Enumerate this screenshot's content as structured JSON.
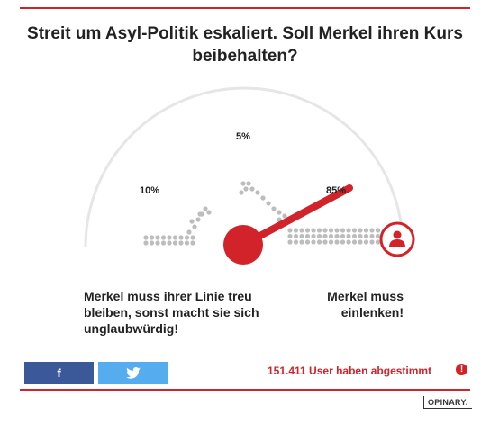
{
  "poll": {
    "question": "Streit um Asyl-Politik eskaliert. Soll Merkel ihren Kurs beibehalten?",
    "results": [
      {
        "label": "10%",
        "value": 10
      },
      {
        "label": "5%",
        "value": 5
      },
      {
        "label": "85%",
        "value": 85
      }
    ],
    "needle_value": 85,
    "option_left": "Merkel muss ihrer Linie treu bleiben, sonst macht sie sich unglaubwürdig!",
    "option_right": "Merkel muss einlenken!",
    "vote_count": "151.411 User haben abgestimmt",
    "info_symbol": "!"
  },
  "share": {
    "facebook_icon": "facebook-icon",
    "twitter_icon": "twitter-icon",
    "facebook_label": "f"
  },
  "brand": {
    "name": "OPINARY."
  },
  "icons": {
    "user": "user-icon"
  },
  "colors": {
    "accent": "#d2232a",
    "facebook": "#3b5998",
    "twitter": "#55acee",
    "dots": "#bdbdbd",
    "arc": "#e6e6e6"
  }
}
